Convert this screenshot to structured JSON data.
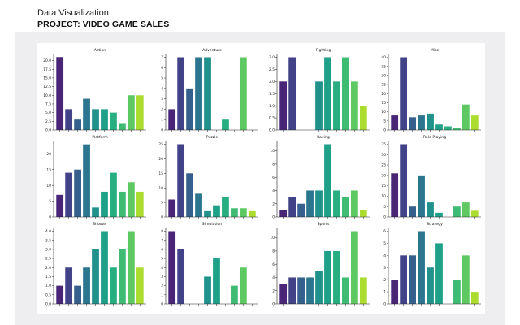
{
  "header": {
    "subtitle": "Data Visualization",
    "title": "PROJECT: VIDEO GAME SALES"
  },
  "colors": {
    "palette": [
      "#482576",
      "#414287",
      "#35608d",
      "#2b758e",
      "#21918c",
      "#1fa088",
      "#28ae80",
      "#3fbc73",
      "#5ec962",
      "#addc30",
      "#b5de2b"
    ],
    "axis": "#222222"
  },
  "chart_data": [
    {
      "type": "bar",
      "title": "Action",
      "values": [
        21,
        6,
        3,
        9,
        6,
        6,
        5,
        2,
        10,
        10
      ],
      "ylim": [
        0,
        22
      ],
      "yticks": [
        "0.0",
        "2.5",
        "5.0",
        "7.5",
        "10.0",
        "12.5",
        "15.0",
        "17.5",
        "20.0"
      ],
      "ytick_values": [
        0,
        2.5,
        5,
        7.5,
        10,
        12.5,
        15,
        17.5,
        20
      ]
    },
    {
      "type": "bar",
      "title": "Adventure",
      "values": [
        2,
        7,
        4,
        7,
        7,
        0,
        1,
        0,
        7,
        0
      ],
      "ylim": [
        0,
        7.35
      ],
      "yticks": [
        "0",
        "1",
        "2",
        "3",
        "4",
        "5",
        "6",
        "7"
      ],
      "ytick_values": [
        0,
        1,
        2,
        3,
        4,
        5,
        6,
        7
      ]
    },
    {
      "type": "bar",
      "title": "Fighting",
      "values": [
        2,
        3,
        0,
        0,
        2,
        3,
        2,
        3,
        2,
        1
      ],
      "ylim": [
        0,
        3.15
      ],
      "yticks": [
        "0.0",
        "0.5",
        "1.0",
        "1.5",
        "2.0",
        "2.5",
        "3.0"
      ],
      "ytick_values": [
        0,
        0.5,
        1,
        1.5,
        2,
        2.5,
        3
      ]
    },
    {
      "type": "bar",
      "title": "Misc",
      "values": [
        8,
        40,
        7,
        8,
        9,
        3,
        2,
        1,
        14,
        8
      ],
      "ylim": [
        0,
        42
      ],
      "yticks": [
        "0",
        "5",
        "10",
        "15",
        "20",
        "25",
        "30",
        "35",
        "40"
      ],
      "ytick_values": [
        0,
        5,
        10,
        15,
        20,
        25,
        30,
        35,
        40
      ]
    },
    {
      "type": "bar",
      "title": "Platform",
      "values": [
        7,
        14,
        15,
        23,
        3,
        8,
        14,
        8,
        11,
        8
      ],
      "ylim": [
        0,
        24.2
      ],
      "yticks": [
        "0",
        "5",
        "10",
        "15",
        "20"
      ],
      "ytick_values": [
        0,
        5,
        10,
        15,
        20
      ]
    },
    {
      "type": "bar",
      "title": "Puzzle",
      "values": [
        6,
        25,
        15,
        8,
        2,
        4,
        7,
        3,
        3,
        2
      ],
      "ylim": [
        0,
        26.25
      ],
      "yticks": [
        "0",
        "5",
        "10",
        "15",
        "20",
        "25"
      ],
      "ytick_values": [
        0,
        5,
        10,
        15,
        20,
        25
      ]
    },
    {
      "type": "bar",
      "title": "Racing",
      "values": [
        1,
        3,
        2,
        4,
        4,
        11,
        4,
        3,
        4,
        1
      ],
      "ylim": [
        0,
        11.55
      ],
      "yticks": [
        "0",
        "2",
        "4",
        "6",
        "8",
        "10"
      ],
      "ytick_values": [
        0,
        2,
        4,
        6,
        8,
        10
      ]
    },
    {
      "type": "bar",
      "title": "Role-Playing",
      "values": [
        21,
        35,
        5,
        20,
        7,
        2,
        0,
        5,
        7,
        3
      ],
      "ylim": [
        0,
        36.75
      ],
      "yticks": [
        "0",
        "5",
        "10",
        "15",
        "20",
        "25",
        "30",
        "35"
      ],
      "ytick_values": [
        0,
        5,
        10,
        15,
        20,
        25,
        30,
        35
      ]
    },
    {
      "type": "bar",
      "title": "Shooter",
      "values": [
        1,
        2,
        1,
        2,
        3,
        4,
        2,
        3,
        4,
        2
      ],
      "ylim": [
        0,
        4.2
      ],
      "yticks": [
        "0.0",
        "0.5",
        "1.0",
        "1.5",
        "2.0",
        "2.5",
        "3.0",
        "3.5",
        "4.0"
      ],
      "ytick_values": [
        0,
        0.5,
        1,
        1.5,
        2,
        2.5,
        3,
        3.5,
        4
      ]
    },
    {
      "type": "bar",
      "title": "Simulation",
      "values": [
        8,
        6,
        0,
        0,
        3,
        5,
        0,
        2,
        4,
        0
      ],
      "ylim": [
        0,
        8.4
      ],
      "yticks": [
        "0",
        "1",
        "2",
        "3",
        "4",
        "5",
        "6",
        "7",
        "8"
      ],
      "ytick_values": [
        0,
        1,
        2,
        3,
        4,
        5,
        6,
        7,
        8
      ]
    },
    {
      "type": "bar",
      "title": "Sports",
      "values": [
        3,
        4,
        4,
        4,
        5,
        8,
        8,
        4,
        11,
        4
      ],
      "ylim": [
        0,
        11.55
      ],
      "yticks": [
        "0",
        "2",
        "4",
        "6",
        "8",
        "10"
      ],
      "ytick_values": [
        0,
        2,
        4,
        6,
        8,
        10
      ]
    },
    {
      "type": "bar",
      "title": "Strategy",
      "values": [
        2,
        4,
        4,
        6,
        3,
        5,
        0,
        2,
        4,
        1
      ],
      "ylim": [
        0,
        6.3
      ],
      "yticks": [
        "0",
        "1",
        "2",
        "3",
        "4",
        "5",
        "6"
      ],
      "ytick_values": [
        0,
        1,
        2,
        3,
        4,
        5,
        6
      ]
    }
  ]
}
